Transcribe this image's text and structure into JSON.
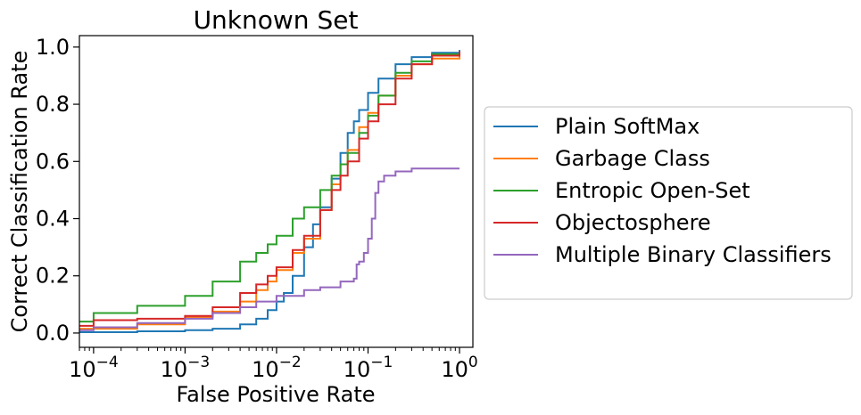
{
  "chart_data": {
    "type": "line",
    "title": "Unknown Set",
    "xlabel": "False Positive Rate",
    "ylabel": "Correct Classification Rate",
    "xscale": "log",
    "xlim": [
      7e-05,
      1.4
    ],
    "ylim": [
      -0.05,
      1.04
    ],
    "x_ticks": [
      {
        "value": 0.0001,
        "base": "10",
        "exp": "−4"
      },
      {
        "value": 0.001,
        "base": "10",
        "exp": "−3"
      },
      {
        "value": 0.01,
        "base": "10",
        "exp": "−2"
      },
      {
        "value": 0.1,
        "base": "10",
        "exp": "−1"
      },
      {
        "value": 1,
        "base": "10",
        "exp": "0"
      }
    ],
    "y_ticks": [
      {
        "value": 0.0,
        "label": "0.0"
      },
      {
        "value": 0.2,
        "label": "0.2"
      },
      {
        "value": 0.4,
        "label": "0.4"
      },
      {
        "value": 0.6,
        "label": "0.6"
      },
      {
        "value": 0.8,
        "label": "0.8"
      },
      {
        "value": 1.0,
        "label": "1.0"
      }
    ],
    "grid": false,
    "legend_position": "outside-right",
    "series": [
      {
        "name": "Plain SoftMax",
        "color": "#1f77b4",
        "x": [
          7e-05,
          0.0003,
          0.001,
          0.002,
          0.004,
          0.006,
          0.008,
          0.01,
          0.012,
          0.015,
          0.02,
          0.025,
          0.03,
          0.04,
          0.05,
          0.06,
          0.07,
          0.08,
          0.1,
          0.13,
          0.2,
          0.3,
          0.5,
          1.0
        ],
        "y": [
          0.003,
          0.006,
          0.01,
          0.015,
          0.03,
          0.05,
          0.08,
          0.11,
          0.14,
          0.2,
          0.3,
          0.38,
          0.44,
          0.54,
          0.63,
          0.7,
          0.74,
          0.78,
          0.84,
          0.89,
          0.94,
          0.965,
          0.98,
          0.99
        ]
      },
      {
        "name": "Garbage Class",
        "color": "#ff7f0e",
        "x": [
          7e-05,
          0.0001,
          0.0003,
          0.001,
          0.002,
          0.004,
          0.006,
          0.008,
          0.01,
          0.015,
          0.02,
          0.03,
          0.04,
          0.05,
          0.06,
          0.08,
          0.1,
          0.13,
          0.2,
          0.3,
          0.5,
          1.0
        ],
        "y": [
          0.015,
          0.015,
          0.03,
          0.055,
          0.075,
          0.11,
          0.15,
          0.18,
          0.22,
          0.28,
          0.33,
          0.43,
          0.52,
          0.59,
          0.64,
          0.72,
          0.77,
          0.83,
          0.9,
          0.94,
          0.96,
          0.97
        ]
      },
      {
        "name": "Entropic Open-Set",
        "color": "#2ca02c",
        "x": [
          7e-05,
          0.0001,
          0.0003,
          0.001,
          0.002,
          0.004,
          0.006,
          0.008,
          0.01,
          0.015,
          0.02,
          0.03,
          0.04,
          0.05,
          0.06,
          0.08,
          0.1,
          0.13,
          0.2,
          0.3,
          0.5,
          1.0
        ],
        "y": [
          0.04,
          0.07,
          0.095,
          0.13,
          0.18,
          0.25,
          0.28,
          0.31,
          0.34,
          0.4,
          0.44,
          0.5,
          0.55,
          0.59,
          0.63,
          0.7,
          0.76,
          0.83,
          0.91,
          0.95,
          0.975,
          0.985
        ]
      },
      {
        "name": "Objectosphere",
        "color": "#d62728",
        "x": [
          7e-05,
          0.0001,
          0.0003,
          0.001,
          0.002,
          0.004,
          0.006,
          0.008,
          0.01,
          0.015,
          0.02,
          0.03,
          0.04,
          0.05,
          0.06,
          0.08,
          0.1,
          0.13,
          0.2,
          0.3,
          0.5,
          1.0
        ],
        "y": [
          0.025,
          0.045,
          0.05,
          0.06,
          0.09,
          0.14,
          0.17,
          0.2,
          0.23,
          0.29,
          0.34,
          0.43,
          0.5,
          0.55,
          0.6,
          0.68,
          0.74,
          0.8,
          0.89,
          0.94,
          0.97,
          0.985
        ]
      },
      {
        "name": "Multiple Binary Classifiers",
        "color": "#9467bd",
        "x": [
          7e-05,
          0.0001,
          0.0003,
          0.001,
          0.002,
          0.004,
          0.006,
          0.01,
          0.02,
          0.03,
          0.05,
          0.07,
          0.075,
          0.08,
          0.09,
          0.1,
          0.11,
          0.12,
          0.13,
          0.15,
          0.2,
          0.3,
          0.5,
          1.0
        ],
        "y": [
          0.01,
          0.02,
          0.035,
          0.05,
          0.07,
          0.09,
          0.11,
          0.13,
          0.15,
          0.16,
          0.18,
          0.19,
          0.24,
          0.25,
          0.28,
          0.33,
          0.4,
          0.49,
          0.53,
          0.55,
          0.565,
          0.575,
          0.575,
          0.575
        ]
      }
    ]
  }
}
